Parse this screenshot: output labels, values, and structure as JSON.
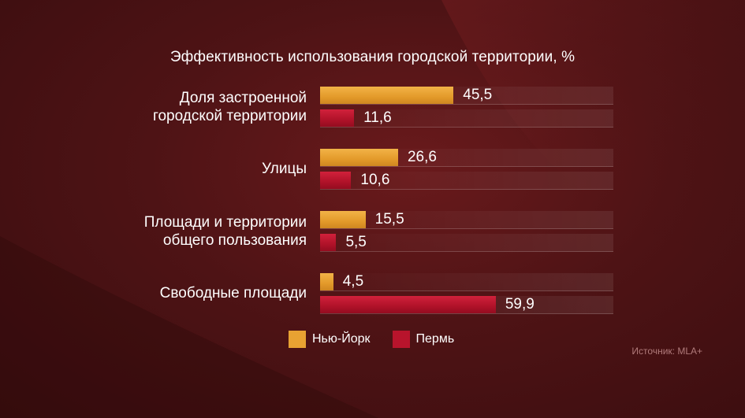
{
  "chart_data": {
    "type": "bar",
    "orientation": "horizontal",
    "title": "Эффективность использования городской территории, %",
    "categories": [
      [
        "Доля застроенной",
        "городской территории"
      ],
      [
        "Улицы"
      ],
      [
        "Площади и территории",
        "общего пользования"
      ],
      [
        "Свободные площади"
      ]
    ],
    "series": [
      {
        "name": "Нью-Йорк",
        "color": "#e8a232",
        "values": [
          45.5,
          26.6,
          15.5,
          4.5
        ],
        "labels": [
          "45,5",
          "26,6",
          "15,5",
          "4,5"
        ]
      },
      {
        "name": "Пермь",
        "color": "#b8142c",
        "values": [
          11.6,
          10.6,
          5.5,
          59.9
        ],
        "labels": [
          "11,6",
          "10,6",
          "5,5",
          "59,9"
        ]
      }
    ],
    "xlim": [
      0,
      100
    ],
    "legend_position": "bottom",
    "grid": false
  },
  "source": "Источник: MLA+"
}
